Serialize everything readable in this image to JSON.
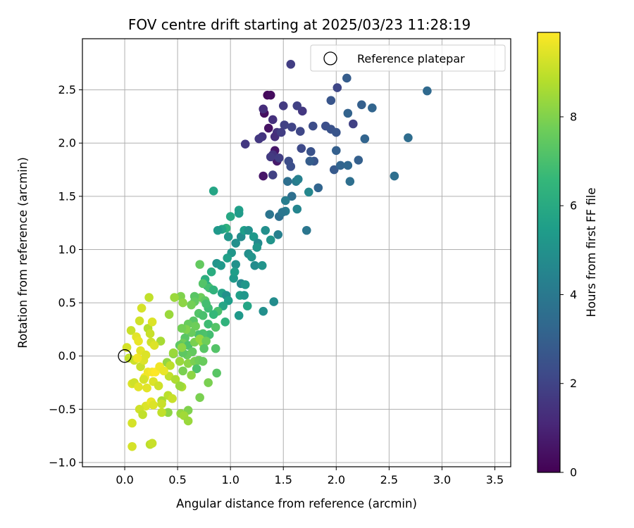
{
  "chart_data": {
    "type": "scatter",
    "title": "FOV centre drift starting at 2025/03/23 11:28:19",
    "xlabel": "Angular distance from reference (arcmin)",
    "ylabel": "Rotation from reference (arcmin)",
    "xlim": [
      -0.4,
      3.65
    ],
    "ylim": [
      -1.04,
      2.98
    ],
    "xticks": [
      0.0,
      0.5,
      1.0,
      1.5,
      2.0,
      2.5,
      3.0,
      3.5
    ],
    "xtick_labels": [
      "0.0",
      "0.5",
      "1.0",
      "1.5",
      "2.0",
      "2.5",
      "3.0",
      "3.5"
    ],
    "yticks": [
      -1.0,
      -0.5,
      0.0,
      0.5,
      1.0,
      1.5,
      2.0,
      2.5
    ],
    "ytick_labels": [
      "−1.0",
      "−0.5",
      "0.0",
      "0.5",
      "1.0",
      "1.5",
      "2.0",
      "2.5"
    ],
    "grid": true,
    "legend": {
      "placement": "top-right",
      "entries": [
        {
          "label": "Reference platepar",
          "marker": "open-circle"
        }
      ]
    },
    "reference_point": {
      "x": 0.0,
      "y": 0.0
    },
    "colorbar": {
      "label": "Hours from first FF file",
      "colormap": "viridis",
      "range": [
        0,
        9.9
      ],
      "ticks": [
        0,
        2,
        4,
        6,
        8
      ],
      "tick_labels": [
        "0",
        "2",
        "4",
        "6",
        "8"
      ]
    },
    "points": [
      {
        "x": 1.35,
        "y": 2.45,
        "c": 0.2
      },
      {
        "x": 1.38,
        "y": 2.45,
        "c": 0.3
      },
      {
        "x": 1.32,
        "y": 2.28,
        "c": 0.4
      },
      {
        "x": 1.36,
        "y": 2.14,
        "c": 0.5
      },
      {
        "x": 1.42,
        "y": 1.93,
        "c": 0.6
      },
      {
        "x": 1.44,
        "y": 1.83,
        "c": 0.7
      },
      {
        "x": 1.31,
        "y": 1.69,
        "c": 0.6
      },
      {
        "x": 1.57,
        "y": 2.74,
        "c": 1.8
      },
      {
        "x": 1.31,
        "y": 2.32,
        "c": 1.3
      },
      {
        "x": 1.4,
        "y": 2.22,
        "c": 1.4
      },
      {
        "x": 1.44,
        "y": 2.1,
        "c": 1.5
      },
      {
        "x": 1.42,
        "y": 2.06,
        "c": 1.3
      },
      {
        "x": 1.3,
        "y": 2.06,
        "c": 1.5
      },
      {
        "x": 1.27,
        "y": 2.04,
        "c": 1.6
      },
      {
        "x": 1.5,
        "y": 2.35,
        "c": 1.7
      },
      {
        "x": 1.68,
        "y": 2.3,
        "c": 1.6
      },
      {
        "x": 1.63,
        "y": 2.35,
        "c": 1.9
      },
      {
        "x": 1.51,
        "y": 2.17,
        "c": 1.9
      },
      {
        "x": 1.48,
        "y": 2.1,
        "c": 1.8
      },
      {
        "x": 1.58,
        "y": 2.15,
        "c": 2.0
      },
      {
        "x": 1.66,
        "y": 2.11,
        "c": 2.1
      },
      {
        "x": 1.78,
        "y": 2.16,
        "c": 2.3
      },
      {
        "x": 1.9,
        "y": 2.16,
        "c": 2.4
      },
      {
        "x": 1.95,
        "y": 2.13,
        "c": 2.5
      },
      {
        "x": 2.0,
        "y": 2.1,
        "c": 2.6
      },
      {
        "x": 2.01,
        "y": 2.52,
        "c": 2.1
      },
      {
        "x": 1.95,
        "y": 2.4,
        "c": 2.6
      },
      {
        "x": 2.1,
        "y": 2.61,
        "c": 2.9
      },
      {
        "x": 2.16,
        "y": 2.18,
        "c": 1.9
      },
      {
        "x": 2.24,
        "y": 2.36,
        "c": 3.0
      },
      {
        "x": 2.34,
        "y": 2.33,
        "c": 3.2
      },
      {
        "x": 2.27,
        "y": 2.04,
        "c": 3.2
      },
      {
        "x": 2.86,
        "y": 2.49,
        "c": 3.4
      },
      {
        "x": 2.68,
        "y": 2.05,
        "c": 3.5
      },
      {
        "x": 2.55,
        "y": 1.69,
        "c": 3.6
      },
      {
        "x": 2.11,
        "y": 2.28,
        "c": 3.1
      },
      {
        "x": 2.0,
        "y": 1.93,
        "c": 3.0
      },
      {
        "x": 1.98,
        "y": 1.75,
        "c": 2.8
      },
      {
        "x": 2.04,
        "y": 1.79,
        "c": 3.2
      },
      {
        "x": 2.11,
        "y": 1.79,
        "c": 3.3
      },
      {
        "x": 2.21,
        "y": 1.84,
        "c": 3.0
      },
      {
        "x": 2.13,
        "y": 1.64,
        "c": 3.6
      },
      {
        "x": 1.14,
        "y": 1.99,
        "c": 1.6
      },
      {
        "x": 1.4,
        "y": 1.89,
        "c": 1.5
      },
      {
        "x": 1.38,
        "y": 1.87,
        "c": 1.7
      },
      {
        "x": 1.46,
        "y": 1.86,
        "c": 1.8
      },
      {
        "x": 1.4,
        "y": 1.7,
        "c": 1.9
      },
      {
        "x": 1.55,
        "y": 1.83,
        "c": 2.3
      },
      {
        "x": 1.57,
        "y": 1.78,
        "c": 2.4
      },
      {
        "x": 1.67,
        "y": 1.95,
        "c": 2.2
      },
      {
        "x": 1.76,
        "y": 1.92,
        "c": 2.5
      },
      {
        "x": 1.79,
        "y": 1.83,
        "c": 2.6
      },
      {
        "x": 1.75,
        "y": 1.83,
        "c": 2.9
      },
      {
        "x": 1.62,
        "y": 1.64,
        "c": 4.1
      },
      {
        "x": 1.64,
        "y": 1.66,
        "c": 4.3
      },
      {
        "x": 1.54,
        "y": 1.64,
        "c": 3.6
      },
      {
        "x": 1.58,
        "y": 1.5,
        "c": 3.6
      },
      {
        "x": 1.52,
        "y": 1.46,
        "c": 4.2
      },
      {
        "x": 1.74,
        "y": 1.54,
        "c": 4.6
      },
      {
        "x": 1.83,
        "y": 1.58,
        "c": 3.2
      },
      {
        "x": 1.52,
        "y": 1.36,
        "c": 4.1
      },
      {
        "x": 1.46,
        "y": 1.31,
        "c": 3.6
      },
      {
        "x": 1.37,
        "y": 1.33,
        "c": 3.8
      },
      {
        "x": 1.63,
        "y": 1.38,
        "c": 4.5
      },
      {
        "x": 1.49,
        "y": 1.35,
        "c": 3.9
      },
      {
        "x": 1.72,
        "y": 1.18,
        "c": 3.9
      },
      {
        "x": 1.45,
        "y": 1.14,
        "c": 4.3
      },
      {
        "x": 1.38,
        "y": 1.09,
        "c": 5.1
      },
      {
        "x": 1.33,
        "y": 1.18,
        "c": 4.9
      },
      {
        "x": 0.84,
        "y": 1.55,
        "c": 5.8
      },
      {
        "x": 1.08,
        "y": 1.37,
        "c": 5.6
      },
      {
        "x": 1.08,
        "y": 1.34,
        "c": 5.4
      },
      {
        "x": 1.0,
        "y": 1.31,
        "c": 5.9
      },
      {
        "x": 0.96,
        "y": 1.2,
        "c": 6.3
      },
      {
        "x": 0.92,
        "y": 1.19,
        "c": 5.7
      },
      {
        "x": 0.88,
        "y": 1.18,
        "c": 5.3
      },
      {
        "x": 0.98,
        "y": 1.12,
        "c": 5.2
      },
      {
        "x": 1.05,
        "y": 1.06,
        "c": 4.9
      },
      {
        "x": 1.1,
        "y": 1.12,
        "c": 4.8
      },
      {
        "x": 1.13,
        "y": 1.18,
        "c": 5.5
      },
      {
        "x": 1.17,
        "y": 1.18,
        "c": 5.0
      },
      {
        "x": 1.22,
        "y": 1.12,
        "c": 5.3
      },
      {
        "x": 1.26,
        "y": 1.06,
        "c": 4.7
      },
      {
        "x": 1.25,
        "y": 1.02,
        "c": 5.2
      },
      {
        "x": 1.17,
        "y": 0.96,
        "c": 4.9
      },
      {
        "x": 1.2,
        "y": 0.93,
        "c": 5.1
      },
      {
        "x": 1.23,
        "y": 0.85,
        "c": 4.8
      },
      {
        "x": 1.3,
        "y": 0.85,
        "c": 5.1
      },
      {
        "x": 1.01,
        "y": 0.97,
        "c": 5.2
      },
      {
        "x": 0.97,
        "y": 0.92,
        "c": 5.6
      },
      {
        "x": 0.87,
        "y": 0.87,
        "c": 5.1
      },
      {
        "x": 0.91,
        "y": 0.85,
        "c": 5.3
      },
      {
        "x": 1.05,
        "y": 0.86,
        "c": 5.0
      },
      {
        "x": 1.03,
        "y": 0.73,
        "c": 5.3
      },
      {
        "x": 1.04,
        "y": 0.79,
        "c": 5.5
      },
      {
        "x": 0.82,
        "y": 0.79,
        "c": 6.1
      },
      {
        "x": 0.78,
        "y": 0.66,
        "c": 6.0
      },
      {
        "x": 0.76,
        "y": 0.72,
        "c": 6.2
      },
      {
        "x": 0.71,
        "y": 0.86,
        "c": 7.5
      },
      {
        "x": 0.74,
        "y": 0.68,
        "c": 7.2
      },
      {
        "x": 0.72,
        "y": 0.55,
        "c": 7.7
      },
      {
        "x": 0.8,
        "y": 0.64,
        "c": 6.9
      },
      {
        "x": 0.84,
        "y": 0.62,
        "c": 6.4
      },
      {
        "x": 0.92,
        "y": 0.59,
        "c": 5.7
      },
      {
        "x": 0.96,
        "y": 0.57,
        "c": 5.0
      },
      {
        "x": 0.98,
        "y": 0.52,
        "c": 5.5
      },
      {
        "x": 0.93,
        "y": 0.47,
        "c": 5.8
      },
      {
        "x": 1.09,
        "y": 0.57,
        "c": 5.6
      },
      {
        "x": 1.13,
        "y": 0.57,
        "c": 5.2
      },
      {
        "x": 1.1,
        "y": 0.68,
        "c": 4.7
      },
      {
        "x": 1.14,
        "y": 0.67,
        "c": 5.2
      },
      {
        "x": 1.16,
        "y": 0.47,
        "c": 5.8
      },
      {
        "x": 1.08,
        "y": 0.38,
        "c": 5.3
      },
      {
        "x": 1.41,
        "y": 0.51,
        "c": 4.8
      },
      {
        "x": 1.31,
        "y": 0.42,
        "c": 4.9
      },
      {
        "x": 0.88,
        "y": 0.42,
        "c": 7.0
      },
      {
        "x": 0.84,
        "y": 0.39,
        "c": 6.6
      },
      {
        "x": 0.79,
        "y": 0.45,
        "c": 6.8
      },
      {
        "x": 0.76,
        "y": 0.52,
        "c": 7.4
      },
      {
        "x": 0.77,
        "y": 0.49,
        "c": 6.9
      },
      {
        "x": 0.66,
        "y": 0.56,
        "c": 7.3
      },
      {
        "x": 0.66,
        "y": 0.51,
        "c": 7.5
      },
      {
        "x": 0.63,
        "y": 0.48,
        "c": 7.8
      },
      {
        "x": 0.53,
        "y": 0.56,
        "c": 8.0
      },
      {
        "x": 0.47,
        "y": 0.55,
        "c": 8.4
      },
      {
        "x": 0.55,
        "y": 0.5,
        "c": 8.2
      },
      {
        "x": 0.42,
        "y": 0.39,
        "c": 8.4
      },
      {
        "x": 0.7,
        "y": 0.4,
        "c": 7.2
      },
      {
        "x": 0.74,
        "y": 0.38,
        "c": 7.0
      },
      {
        "x": 0.65,
        "y": 0.33,
        "c": 7.3
      },
      {
        "x": 0.6,
        "y": 0.3,
        "c": 7.6
      },
      {
        "x": 0.67,
        "y": 0.28,
        "c": 7.7
      },
      {
        "x": 0.79,
        "y": 0.3,
        "c": 6.8
      },
      {
        "x": 0.86,
        "y": 0.27,
        "c": 7.2
      },
      {
        "x": 0.95,
        "y": 0.32,
        "c": 6.4
      },
      {
        "x": 0.8,
        "y": 0.2,
        "c": 6.9
      },
      {
        "x": 0.74,
        "y": 0.21,
        "c": 7.1
      },
      {
        "x": 0.7,
        "y": 0.2,
        "c": 7.0
      },
      {
        "x": 0.63,
        "y": 0.22,
        "c": 7.6
      },
      {
        "x": 0.58,
        "y": 0.25,
        "c": 8.0
      },
      {
        "x": 0.54,
        "y": 0.26,
        "c": 7.8
      },
      {
        "x": 0.57,
        "y": 0.17,
        "c": 7.3
      },
      {
        "x": 0.55,
        "y": 0.12,
        "c": 7.7
      },
      {
        "x": 0.52,
        "y": 0.1,
        "c": 7.4
      },
      {
        "x": 0.6,
        "y": 0.1,
        "c": 7.1
      },
      {
        "x": 0.66,
        "y": 0.13,
        "c": 7.9
      },
      {
        "x": 0.71,
        "y": 0.16,
        "c": 8.3
      },
      {
        "x": 0.74,
        "y": 0.12,
        "c": 8.4
      },
      {
        "x": 0.77,
        "y": 0.14,
        "c": 7.7
      },
      {
        "x": 0.86,
        "y": 0.07,
        "c": 7.2
      },
      {
        "x": 0.75,
        "y": 0.07,
        "c": 7.3
      },
      {
        "x": 0.64,
        "y": 0.04,
        "c": 7.5
      },
      {
        "x": 0.59,
        "y": 0.01,
        "c": 7.6
      },
      {
        "x": 0.55,
        "y": 0.03,
        "c": 7.4
      },
      {
        "x": 0.46,
        "y": 0.02,
        "c": 8.0
      },
      {
        "x": 0.4,
        "y": -0.06,
        "c": 8.3
      },
      {
        "x": 0.43,
        "y": -0.09,
        "c": 8.9
      },
      {
        "x": 0.52,
        "y": -0.05,
        "c": 8.4
      },
      {
        "x": 0.6,
        "y": -0.07,
        "c": 8.2
      },
      {
        "x": 0.66,
        "y": -0.05,
        "c": 7.9
      },
      {
        "x": 0.7,
        "y": -0.04,
        "c": 7.7
      },
      {
        "x": 0.74,
        "y": -0.05,
        "c": 7.6
      },
      {
        "x": 0.68,
        "y": -0.12,
        "c": 7.1
      },
      {
        "x": 0.55,
        "y": -0.14,
        "c": 7.9
      },
      {
        "x": 0.63,
        "y": -0.18,
        "c": 8.2
      },
      {
        "x": 0.42,
        "y": -0.19,
        "c": 9.0
      },
      {
        "x": 0.48,
        "y": -0.22,
        "c": 8.7
      },
      {
        "x": 0.87,
        "y": -0.16,
        "c": 7.3
      },
      {
        "x": 0.79,
        "y": -0.25,
        "c": 7.9
      },
      {
        "x": 0.54,
        "y": -0.29,
        "c": 8.7
      },
      {
        "x": 0.52,
        "y": -0.28,
        "c": 8.4
      },
      {
        "x": 0.41,
        "y": -0.37,
        "c": 8.9
      },
      {
        "x": 0.45,
        "y": -0.4,
        "c": 9.1
      },
      {
        "x": 0.35,
        "y": -0.42,
        "c": 8.6
      },
      {
        "x": 0.71,
        "y": -0.39,
        "c": 7.9
      },
      {
        "x": 0.6,
        "y": -0.51,
        "c": 8.0
      },
      {
        "x": 0.53,
        "y": -0.54,
        "c": 8.3
      },
      {
        "x": 0.56,
        "y": -0.56,
        "c": 8.5
      },
      {
        "x": 0.41,
        "y": -0.53,
        "c": 8.2
      },
      {
        "x": 0.6,
        "y": -0.61,
        "c": 8.4
      },
      {
        "x": 0.35,
        "y": -0.53,
        "c": 9.0
      },
      {
        "x": 0.2,
        "y": -0.47,
        "c": 9.4
      },
      {
        "x": 0.14,
        "y": -0.5,
        "c": 9.2
      },
      {
        "x": 0.17,
        "y": -0.55,
        "c": 9.0
      },
      {
        "x": 0.07,
        "y": -0.63,
        "c": 9.3
      },
      {
        "x": 0.07,
        "y": -0.85,
        "c": 9.3
      },
      {
        "x": 0.24,
        "y": -0.83,
        "c": 8.9
      },
      {
        "x": 0.26,
        "y": -0.82,
        "c": 9.1
      },
      {
        "x": 0.25,
        "y": -0.43,
        "c": 9.6
      },
      {
        "x": 0.27,
        "y": -0.46,
        "c": 9.4
      },
      {
        "x": 0.35,
        "y": -0.45,
        "c": 9.1
      },
      {
        "x": 0.07,
        "y": -0.26,
        "c": 9.4
      },
      {
        "x": 0.09,
        "y": -0.25,
        "c": 9.2
      },
      {
        "x": 0.13,
        "y": -0.29,
        "c": 9.5
      },
      {
        "x": 0.19,
        "y": -0.2,
        "c": 9.8
      },
      {
        "x": 0.22,
        "y": -0.15,
        "c": 9.7
      },
      {
        "x": 0.26,
        "y": -0.15,
        "c": 9.8
      },
      {
        "x": 0.29,
        "y": -0.15,
        "c": 9.9
      },
      {
        "x": 0.33,
        "y": -0.1,
        "c": 9.7
      },
      {
        "x": 0.37,
        "y": -0.14,
        "c": 9.6
      },
      {
        "x": 0.21,
        "y": -0.3,
        "c": 9.5
      },
      {
        "x": 0.18,
        "y": -0.22,
        "c": 9.3
      },
      {
        "x": 0.27,
        "y": -0.24,
        "c": 9.4
      },
      {
        "x": 0.32,
        "y": -0.28,
        "c": 9.2
      },
      {
        "x": 0.15,
        "y": -0.1,
        "c": 9.1
      },
      {
        "x": 0.18,
        "y": -0.04,
        "c": 9.4
      },
      {
        "x": 0.09,
        "y": -0.04,
        "c": 9.2
      },
      {
        "x": 0.04,
        "y": -0.02,
        "c": 9.0
      },
      {
        "x": 0.02,
        "y": 0.08,
        "c": 9.3
      },
      {
        "x": 0.06,
        "y": 0.24,
        "c": 9.1
      },
      {
        "x": 0.14,
        "y": 0.33,
        "c": 9.2
      },
      {
        "x": 0.16,
        "y": 0.45,
        "c": 9.3
      },
      {
        "x": 0.22,
        "y": 0.26,
        "c": 8.8
      },
      {
        "x": 0.24,
        "y": 0.21,
        "c": 9.1
      },
      {
        "x": 0.26,
        "y": 0.32,
        "c": 9.4
      },
      {
        "x": 0.23,
        "y": 0.55,
        "c": 9.0
      },
      {
        "x": 0.11,
        "y": 0.18,
        "c": 9.5
      },
      {
        "x": 0.13,
        "y": 0.14,
        "c": 9.6
      },
      {
        "x": 0.25,
        "y": 0.13,
        "c": 9.2
      },
      {
        "x": 0.34,
        "y": 0.14,
        "c": 8.6
      },
      {
        "x": 0.28,
        "y": 0.1,
        "c": 9.4
      },
      {
        "x": 0.15,
        "y": 0.05,
        "c": 9.5
      },
      {
        "x": 0.2,
        "y": 0.01,
        "c": 9.4
      },
      {
        "x": 0.12,
        "y": -0.02,
        "c": 9.7
      },
      {
        "x": 0.46,
        "y": 0.03,
        "c": 8.4
      },
      {
        "x": 0.54,
        "y": 0.08,
        "c": 8.2
      }
    ]
  }
}
